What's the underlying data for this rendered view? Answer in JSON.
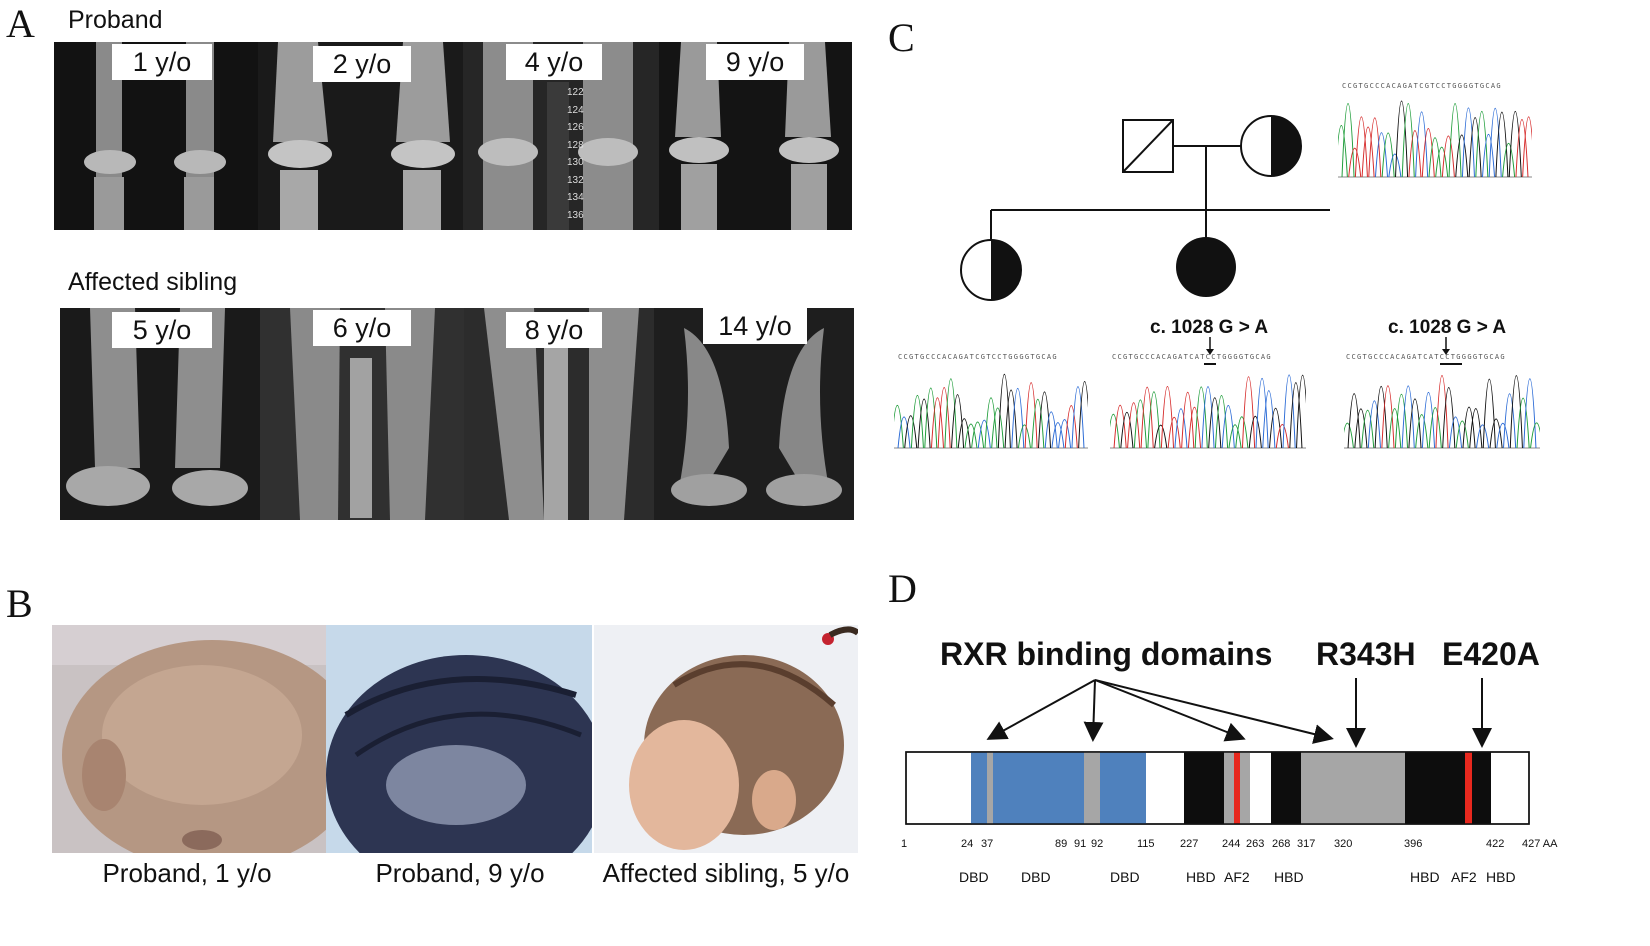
{
  "panelA": {
    "letter": "A",
    "proband_label": "Proband",
    "proband_ages": [
      "1 y/o",
      "2 y/o",
      "4 y/o",
      "9 y/o"
    ],
    "sibling_label": "Affected sibling",
    "sibling_ages": [
      "5 y/o",
      "6 y/o",
      "8 y/o",
      "14 y/o"
    ],
    "ruler_ticks": [
      "122",
      "124",
      "126",
      "128",
      "130",
      "132",
      "134",
      "136"
    ]
  },
  "panelB": {
    "letter": "B",
    "captions": [
      "Proband, 1 y/o",
      "Proband, 9 y/o",
      "Affected sibling, 5 y/o"
    ]
  },
  "panelC": {
    "letter": "C",
    "mutation": "c. 1028 G > A",
    "sequence": "CCGTGCCCACAGATCGTCCTGGGGTGCAG",
    "mutant_sequence": "CCGTGCCCACAGATCATCCTGGGGTGCAG"
  },
  "panelD": {
    "letter": "D",
    "rxr_label": "RXR binding domains",
    "mutation1": "R343H",
    "mutation2": "E420A",
    "positions": [
      "1",
      "24",
      "37",
      "89",
      "91",
      "92",
      "115",
      "227",
      "244",
      "263",
      "268",
      "317",
      "320",
      "396",
      "422",
      "427 AA"
    ],
    "domains": [
      "DBD",
      "DBD",
      "DBD",
      "HBD",
      "AF2",
      "HBD",
      "HBD",
      "AF2",
      "HBD"
    ]
  },
  "colors": {
    "dbd_blue": "#4f81bd",
    "grey": "#a6a6a6",
    "hbd_black": "#0d0d0d",
    "af2_red": "#e8281e"
  }
}
